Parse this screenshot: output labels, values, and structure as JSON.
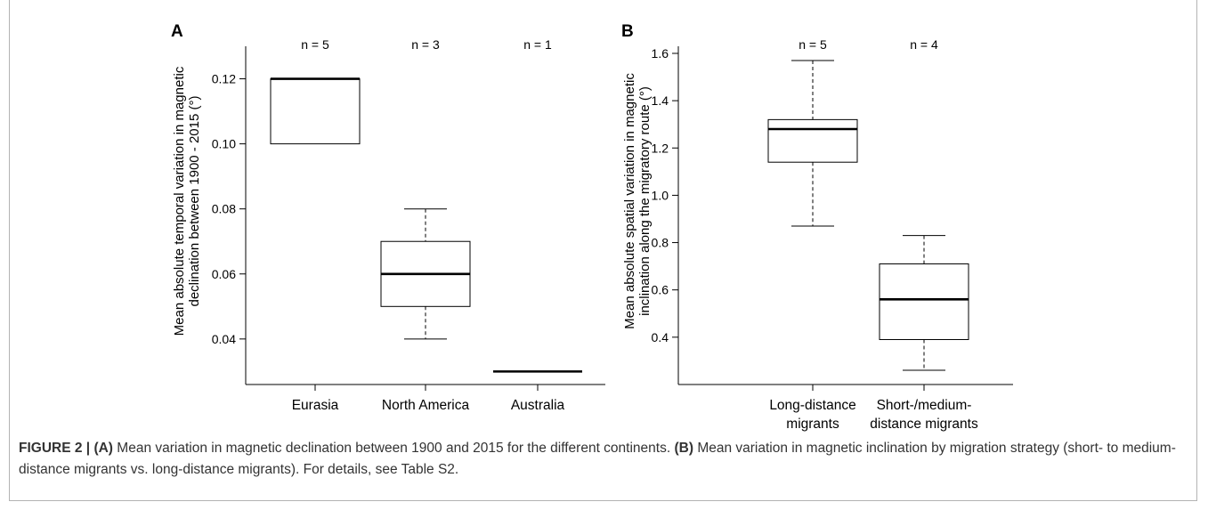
{
  "figure": {
    "caption": {
      "figure_label": "FIGURE 2 |",
      "label_a": "(A)",
      "text_a": "Mean variation in magnetic declination between 1900 and 2015 for the different continents.",
      "label_b": "(B)",
      "text_b": "Mean variation in magnetic inclination by migration strategy (short- to medium-distance migrants vs. long-distance migrants). For details, see Table S2."
    }
  },
  "chart_data": [
    {
      "panel": "A",
      "type": "box",
      "ylabel_lines": [
        "Mean absolute temporal variation in magnetic",
        "declination between 1900 - 2015 (°)"
      ],
      "ylim": [
        0.026,
        0.13
      ],
      "yticks": [
        0.04,
        0.06,
        0.08,
        0.1,
        0.12
      ],
      "ytick_labels": [
        "0.04",
        "0.06",
        "0.08",
        "0.10",
        "0.12"
      ],
      "categories": [
        "Eurasia",
        "North America",
        "Australia"
      ],
      "n_labels": [
        "n = 5",
        "n = 3",
        "n = 1"
      ],
      "boxes": [
        {
          "category": "Eurasia",
          "whisker_low": 0.1,
          "q1": 0.1,
          "median": 0.12,
          "q3": 0.12,
          "whisker_high": 0.12
        },
        {
          "category": "North America",
          "whisker_low": 0.04,
          "q1": 0.05,
          "median": 0.06,
          "q3": 0.07,
          "whisker_high": 0.08
        },
        {
          "category": "Australia",
          "whisker_low": 0.03,
          "q1": 0.03,
          "median": 0.03,
          "q3": 0.03,
          "whisker_high": 0.03
        }
      ]
    },
    {
      "panel": "B",
      "type": "box",
      "ylabel_lines": [
        "Mean absolute spatial variation in magnetic",
        "inclination along the migratory route (°)"
      ],
      "ylim": [
        0.2,
        1.63
      ],
      "yticks": [
        0.4,
        0.6,
        0.8,
        1.0,
        1.2,
        1.4,
        1.6
      ],
      "ytick_labels": [
        "0.4",
        "0.6",
        "0.8",
        "1.0",
        "1.2",
        "1.4",
        "1.6"
      ],
      "categories": [
        [
          "Long-distance",
          "migrants"
        ],
        [
          "Short-/medium-",
          "distance migrants"
        ]
      ],
      "n_labels": [
        "n = 5",
        "n = 4"
      ],
      "boxes": [
        {
          "category": "Long-distance migrants",
          "whisker_low": 0.87,
          "q1": 1.14,
          "median": 1.28,
          "q3": 1.32,
          "whisker_high": 1.57
        },
        {
          "category": "Short-/medium-distance migrants",
          "whisker_low": 0.26,
          "q1": 0.39,
          "median": 0.56,
          "q3": 0.71,
          "whisker_high": 0.83
        }
      ]
    }
  ]
}
